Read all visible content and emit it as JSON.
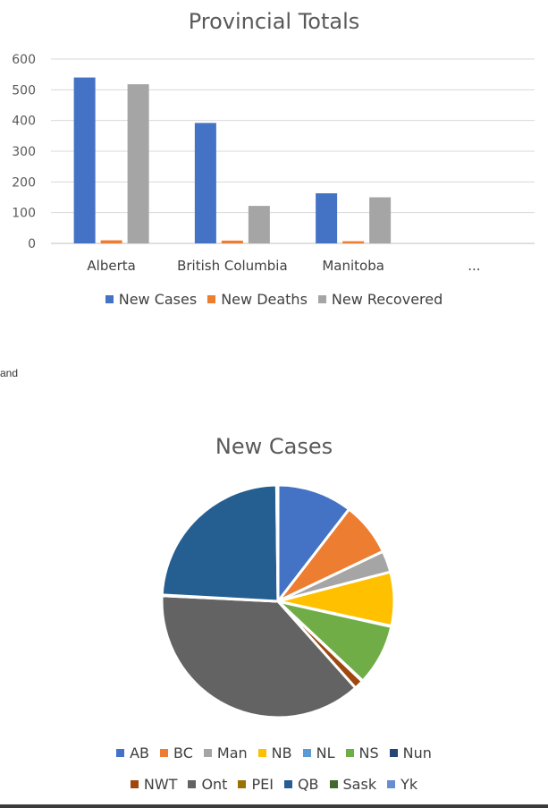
{
  "side_text": "and",
  "chart_data": [
    {
      "type": "bar",
      "title": "Provincial Totals",
      "categories": [
        "Alberta",
        "British Columbia",
        "Manitoba",
        "..."
      ],
      "series": [
        {
          "name": "New Cases",
          "color": "#4472C4",
          "values": [
            540,
            392,
            163,
            null
          ]
        },
        {
          "name": "New Deaths",
          "color": "#ED7D31",
          "values": [
            10,
            9,
            7,
            null
          ]
        },
        {
          "name": "New Recovered",
          "color": "#A5A5A5",
          "values": [
            518,
            122,
            150,
            null
          ]
        }
      ],
      "ylim": [
        0,
        600
      ],
      "yticks": [
        0,
        100,
        200,
        300,
        400,
        500,
        600
      ],
      "grid": true,
      "legend_position": "bottom"
    },
    {
      "type": "pie",
      "title": "New Cases",
      "legend_position": "bottom",
      "slices": [
        {
          "label": "AB",
          "value": 10.5,
          "color": "#4472C4"
        },
        {
          "label": "BC",
          "value": 7.5,
          "color": "#ED7D31"
        },
        {
          "label": "Man",
          "value": 3.0,
          "color": "#A5A5A5"
        },
        {
          "label": "NB",
          "value": 7.5,
          "color": "#FFC000"
        },
        {
          "label": "NL",
          "value": 0.1,
          "color": "#5B9BD5"
        },
        {
          "label": "NS",
          "value": 8.5,
          "color": "#70AD47"
        },
        {
          "label": "Nun",
          "value": 0.1,
          "color": "#264478"
        },
        {
          "label": "NWT",
          "value": 1.3,
          "color": "#9E480E"
        },
        {
          "label": "Ont",
          "value": 37.5,
          "color": "#636363"
        },
        {
          "label": "PEI",
          "value": 0.1,
          "color": "#997300"
        },
        {
          "label": "QB",
          "value": 24.0,
          "color": "#255E91"
        },
        {
          "label": "Sask",
          "value": 0.1,
          "color": "#43682B"
        },
        {
          "label": "Yk",
          "value": 0.1,
          "color": "#698ED0"
        }
      ]
    }
  ]
}
